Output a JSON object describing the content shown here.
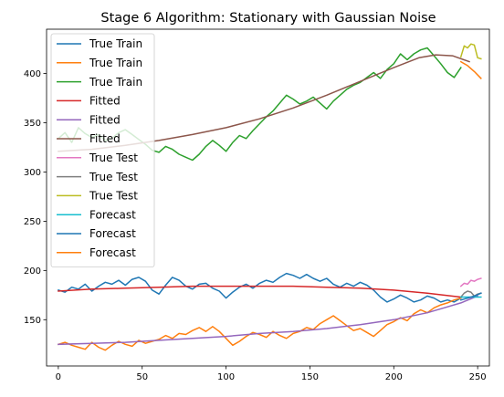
{
  "chart_data": {
    "type": "line",
    "title": "Stage 6 Algorithm: Stationary with Gaussian Noise",
    "xlabel": "",
    "ylabel": "",
    "xlim": [
      -7,
      257
    ],
    "ylim": [
      103,
      445
    ],
    "xticks": [
      0,
      50,
      100,
      150,
      200,
      250
    ],
    "yticks": [
      150,
      200,
      250,
      300,
      350,
      400
    ],
    "grid": false,
    "legend_position": "top-left",
    "series": [
      {
        "name": "True Train",
        "color": "#1f77b4",
        "width": 1.5,
        "points": [
          [
            0,
            180
          ],
          [
            4,
            178
          ],
          [
            8,
            183
          ],
          [
            12,
            181
          ],
          [
            16,
            186
          ],
          [
            20,
            179
          ],
          [
            24,
            184
          ],
          [
            28,
            188
          ],
          [
            32,
            186
          ],
          [
            36,
            190
          ],
          [
            40,
            185
          ],
          [
            44,
            191
          ],
          [
            48,
            193
          ],
          [
            52,
            189
          ],
          [
            56,
            180
          ],
          [
            60,
            176
          ],
          [
            64,
            185
          ],
          [
            68,
            193
          ],
          [
            72,
            190
          ],
          [
            76,
            184
          ],
          [
            80,
            181
          ],
          [
            84,
            186
          ],
          [
            88,
            187
          ],
          [
            92,
            182
          ],
          [
            96,
            179
          ],
          [
            100,
            172
          ],
          [
            104,
            178
          ],
          [
            108,
            183
          ],
          [
            112,
            186
          ],
          [
            116,
            182
          ],
          [
            120,
            187
          ],
          [
            124,
            190
          ],
          [
            128,
            188
          ],
          [
            132,
            193
          ],
          [
            136,
            197
          ],
          [
            140,
            195
          ],
          [
            144,
            192
          ],
          [
            148,
            196
          ],
          [
            152,
            192
          ],
          [
            156,
            189
          ],
          [
            160,
            192
          ],
          [
            164,
            186
          ],
          [
            168,
            183
          ],
          [
            172,
            187
          ],
          [
            176,
            184
          ],
          [
            180,
            188
          ],
          [
            184,
            185
          ],
          [
            188,
            180
          ],
          [
            192,
            173
          ],
          [
            196,
            168
          ],
          [
            200,
            171
          ],
          [
            204,
            175
          ],
          [
            208,
            172
          ],
          [
            212,
            168
          ],
          [
            216,
            170
          ],
          [
            220,
            174
          ],
          [
            224,
            172
          ],
          [
            228,
            168
          ],
          [
            232,
            170
          ],
          [
            236,
            168
          ],
          [
            240,
            172
          ]
        ]
      },
      {
        "name": "True Train",
        "color": "#ff7f0e",
        "width": 1.5,
        "points": [
          [
            0,
            125
          ],
          [
            4,
            127
          ],
          [
            8,
            124
          ],
          [
            12,
            122
          ],
          [
            16,
            120
          ],
          [
            20,
            127
          ],
          [
            24,
            122
          ],
          [
            28,
            119
          ],
          [
            32,
            124
          ],
          [
            36,
            128
          ],
          [
            40,
            125
          ],
          [
            44,
            123
          ],
          [
            48,
            129
          ],
          [
            52,
            126
          ],
          [
            56,
            128
          ],
          [
            60,
            130
          ],
          [
            64,
            134
          ],
          [
            68,
            131
          ],
          [
            72,
            136
          ],
          [
            76,
            135
          ],
          [
            80,
            139
          ],
          [
            84,
            142
          ],
          [
            88,
            138
          ],
          [
            92,
            143
          ],
          [
            96,
            138
          ],
          [
            100,
            131
          ],
          [
            104,
            124
          ],
          [
            108,
            128
          ],
          [
            112,
            133
          ],
          [
            116,
            137
          ],
          [
            120,
            135
          ],
          [
            124,
            132
          ],
          [
            128,
            138
          ],
          [
            132,
            134
          ],
          [
            136,
            131
          ],
          [
            140,
            136
          ],
          [
            144,
            138
          ],
          [
            148,
            142
          ],
          [
            152,
            140
          ],
          [
            156,
            146
          ],
          [
            160,
            150
          ],
          [
            164,
            154
          ],
          [
            168,
            149
          ],
          [
            172,
            144
          ],
          [
            176,
            139
          ],
          [
            180,
            141
          ],
          [
            184,
            137
          ],
          [
            188,
            133
          ],
          [
            192,
            139
          ],
          [
            196,
            145
          ],
          [
            200,
            148
          ],
          [
            204,
            152
          ],
          [
            208,
            149
          ],
          [
            212,
            156
          ],
          [
            216,
            160
          ],
          [
            220,
            157
          ],
          [
            224,
            162
          ],
          [
            228,
            165
          ],
          [
            232,
            167
          ],
          [
            236,
            170
          ],
          [
            240,
            172
          ]
        ]
      },
      {
        "name": "True Train",
        "color": "#2ca02c",
        "width": 1.5,
        "points": [
          [
            0,
            334
          ],
          [
            4,
            340
          ],
          [
            8,
            330
          ],
          [
            12,
            345
          ],
          [
            16,
            339
          ],
          [
            20,
            335
          ],
          [
            24,
            338
          ],
          [
            28,
            332
          ],
          [
            32,
            334
          ],
          [
            36,
            340
          ],
          [
            40,
            343
          ],
          [
            44,
            338
          ],
          [
            48,
            333
          ],
          [
            52,
            328
          ],
          [
            56,
            322
          ],
          [
            60,
            320
          ],
          [
            64,
            326
          ],
          [
            68,
            323
          ],
          [
            72,
            318
          ],
          [
            76,
            315
          ],
          [
            80,
            312
          ],
          [
            84,
            318
          ],
          [
            88,
            326
          ],
          [
            92,
            332
          ],
          [
            96,
            327
          ],
          [
            100,
            321
          ],
          [
            104,
            330
          ],
          [
            108,
            337
          ],
          [
            112,
            334
          ],
          [
            116,
            342
          ],
          [
            120,
            349
          ],
          [
            124,
            356
          ],
          [
            128,
            362
          ],
          [
            132,
            370
          ],
          [
            136,
            378
          ],
          [
            140,
            374
          ],
          [
            144,
            369
          ],
          [
            148,
            372
          ],
          [
            152,
            376
          ],
          [
            156,
            370
          ],
          [
            160,
            364
          ],
          [
            164,
            372
          ],
          [
            168,
            378
          ],
          [
            172,
            384
          ],
          [
            176,
            388
          ],
          [
            180,
            391
          ],
          [
            184,
            396
          ],
          [
            188,
            401
          ],
          [
            192,
            395
          ],
          [
            196,
            404
          ],
          [
            200,
            410
          ],
          [
            204,
            420
          ],
          [
            208,
            414
          ],
          [
            212,
            420
          ],
          [
            216,
            424
          ],
          [
            220,
            426
          ],
          [
            224,
            418
          ],
          [
            228,
            410
          ],
          [
            232,
            401
          ],
          [
            236,
            396
          ],
          [
            240,
            406
          ]
        ]
      },
      {
        "name": "Fitted",
        "color": "#d62728",
        "width": 1.5,
        "points": [
          [
            0,
            179
          ],
          [
            20,
            181
          ],
          [
            40,
            182
          ],
          [
            60,
            183
          ],
          [
            80,
            184
          ],
          [
            100,
            184
          ],
          [
            120,
            184
          ],
          [
            140,
            184
          ],
          [
            160,
            183
          ],
          [
            180,
            182
          ],
          [
            200,
            180
          ],
          [
            220,
            177
          ],
          [
            240,
            173
          ]
        ]
      },
      {
        "name": "Fitted",
        "color": "#9467bd",
        "width": 1.5,
        "points": [
          [
            0,
            125
          ],
          [
            20,
            126
          ],
          [
            40,
            127
          ],
          [
            60,
            129
          ],
          [
            80,
            131
          ],
          [
            100,
            133
          ],
          [
            120,
            136
          ],
          [
            140,
            138
          ],
          [
            160,
            141
          ],
          [
            180,
            145
          ],
          [
            200,
            150
          ],
          [
            220,
            157
          ],
          [
            230,
            162
          ],
          [
            240,
            167
          ],
          [
            250,
            174
          ]
        ]
      },
      {
        "name": "Fitted",
        "color": "#8c564b",
        "width": 1.5,
        "points": [
          [
            0,
            321
          ],
          [
            20,
            323
          ],
          [
            40,
            327
          ],
          [
            60,
            332
          ],
          [
            80,
            338
          ],
          [
            100,
            345
          ],
          [
            120,
            354
          ],
          [
            140,
            365
          ],
          [
            160,
            378
          ],
          [
            180,
            392
          ],
          [
            200,
            406
          ],
          [
            215,
            416
          ],
          [
            225,
            419
          ],
          [
            235,
            418
          ],
          [
            245,
            412
          ]
        ]
      },
      {
        "name": "True Test",
        "color": "#e377c2",
        "width": 1.5,
        "points": [
          [
            240,
            184
          ],
          [
            242,
            187
          ],
          [
            244,
            186
          ],
          [
            246,
            190
          ],
          [
            248,
            189
          ],
          [
            250,
            191
          ],
          [
            252,
            192
          ]
        ]
      },
      {
        "name": "True Test",
        "color": "#7f7f7f",
        "width": 1.5,
        "points": [
          [
            240,
            173
          ],
          [
            242,
            177
          ],
          [
            244,
            179
          ],
          [
            246,
            178
          ],
          [
            248,
            174
          ],
          [
            250,
            176
          ],
          [
            252,
            177
          ]
        ]
      },
      {
        "name": "True Test",
        "color": "#bcbd22",
        "width": 1.5,
        "points": [
          [
            240,
            417
          ],
          [
            242,
            428
          ],
          [
            244,
            426
          ],
          [
            246,
            430
          ],
          [
            248,
            429
          ],
          [
            250,
            416
          ],
          [
            252,
            415
          ]
        ]
      },
      {
        "name": "Forecast",
        "color": "#17becf",
        "width": 1.5,
        "points": [
          [
            240,
            173
          ],
          [
            244,
            173
          ],
          [
            248,
            173
          ],
          [
            252,
            173
          ]
        ]
      },
      {
        "name": "Forecast",
        "color": "#1f77b4",
        "width": 1.5,
        "points": [
          [
            240,
            170
          ],
          [
            244,
            172
          ],
          [
            248,
            174
          ],
          [
            252,
            177
          ]
        ]
      },
      {
        "name": "Forecast",
        "color": "#ff7f0e",
        "width": 1.5,
        "points": [
          [
            240,
            412
          ],
          [
            244,
            408
          ],
          [
            248,
            402
          ],
          [
            252,
            395
          ]
        ]
      }
    ]
  }
}
